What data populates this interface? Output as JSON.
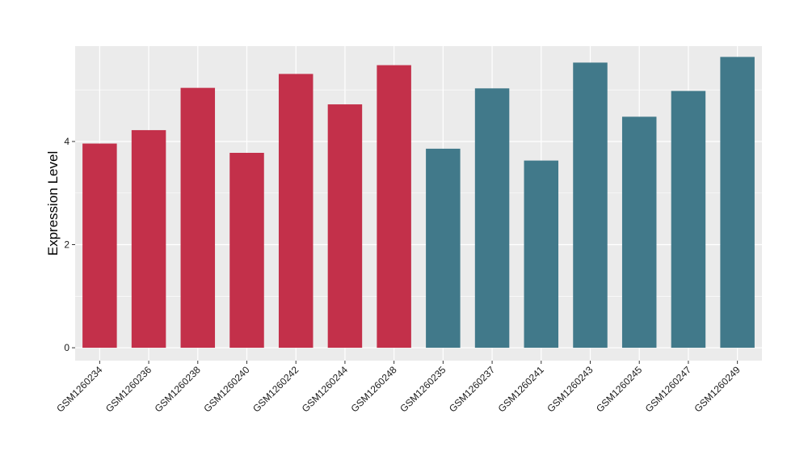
{
  "chart_data": {
    "type": "bar",
    "title": "",
    "xlabel": "",
    "ylabel": "Expression Level",
    "ylim": [
      -0.25,
      5.85
    ],
    "yticks": [
      0,
      2,
      4
    ],
    "grid": true,
    "categories": [
      "GSM1260234",
      "GSM1260236",
      "GSM1260238",
      "GSM1260240",
      "GSM1260242",
      "GSM1260244",
      "GSM1260248",
      "GSM1260235",
      "GSM1260237",
      "GSM1260241",
      "GSM1260243",
      "GSM1260245",
      "GSM1260247",
      "GSM1260249"
    ],
    "values": [
      3.96,
      4.22,
      5.04,
      3.78,
      5.31,
      4.72,
      5.48,
      3.86,
      5.03,
      3.63,
      5.53,
      4.48,
      4.98,
      5.64
    ],
    "colors": [
      "#c3304a",
      "#c3304a",
      "#c3304a",
      "#c3304a",
      "#c3304a",
      "#c3304a",
      "#c3304a",
      "#41798a",
      "#41798a",
      "#41798a",
      "#41798a",
      "#41798a",
      "#41798a",
      "#41798a"
    ],
    "panel_background": "#ebebeb",
    "grid_color": "#ffffff"
  }
}
